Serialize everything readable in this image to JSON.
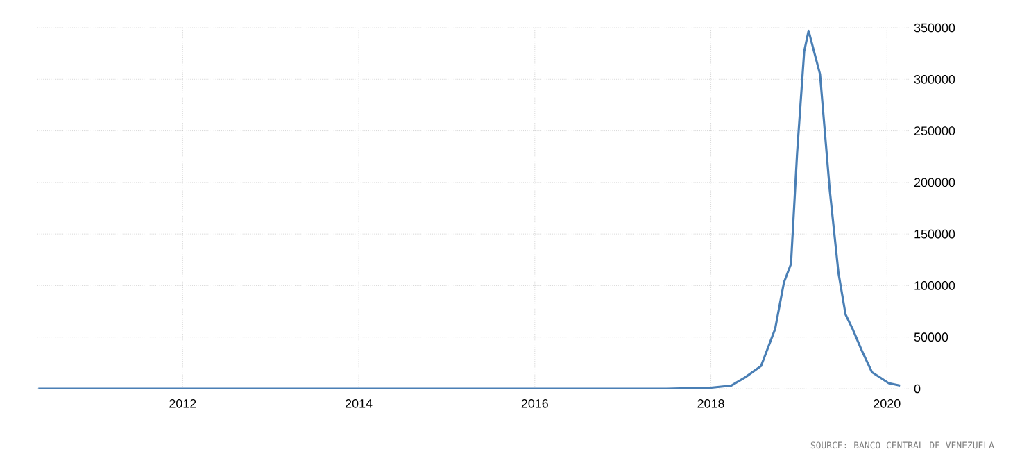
{
  "chart_data": {
    "type": "line",
    "x": [
      2010.36,
      2011,
      2012,
      2013,
      2014,
      2015,
      2015.5,
      2016,
      2016.5,
      2017,
      2017.5,
      2018,
      2018.23,
      2018.39,
      2018.57,
      2018.73,
      2018.83,
      2018.91,
      2018.98,
      2019.06,
      2019.11,
      2019.24,
      2019.35,
      2019.45,
      2019.53,
      2019.61,
      2019.72,
      2019.83,
      2020.02,
      2020.15
    ],
    "series": [
      {
        "color": "#4a7fb5",
        "values": [
          0,
          0,
          0,
          0,
          0,
          0,
          0,
          0,
          0,
          0,
          0,
          1000,
          3000,
          11000,
          22000,
          58000,
          103000,
          121000,
          229000,
          327000,
          347000,
          305000,
          193000,
          112000,
          72000,
          58000,
          36000,
          16000,
          5400,
          3000
        ]
      }
    ],
    "xlim": [
      2010.35,
      2020.25
    ],
    "ylim": [
      0,
      350000
    ],
    "xticks": [
      2012,
      2014,
      2016,
      2018,
      2020
    ],
    "yticks": [
      0,
      50000,
      100000,
      150000,
      200000,
      250000,
      300000,
      350000
    ],
    "grid": true,
    "marker": "none",
    "line_style": "solid",
    "annotations": [
      "SOURCE: BANCO CENTRAL DE VENEZUELA"
    ]
  }
}
